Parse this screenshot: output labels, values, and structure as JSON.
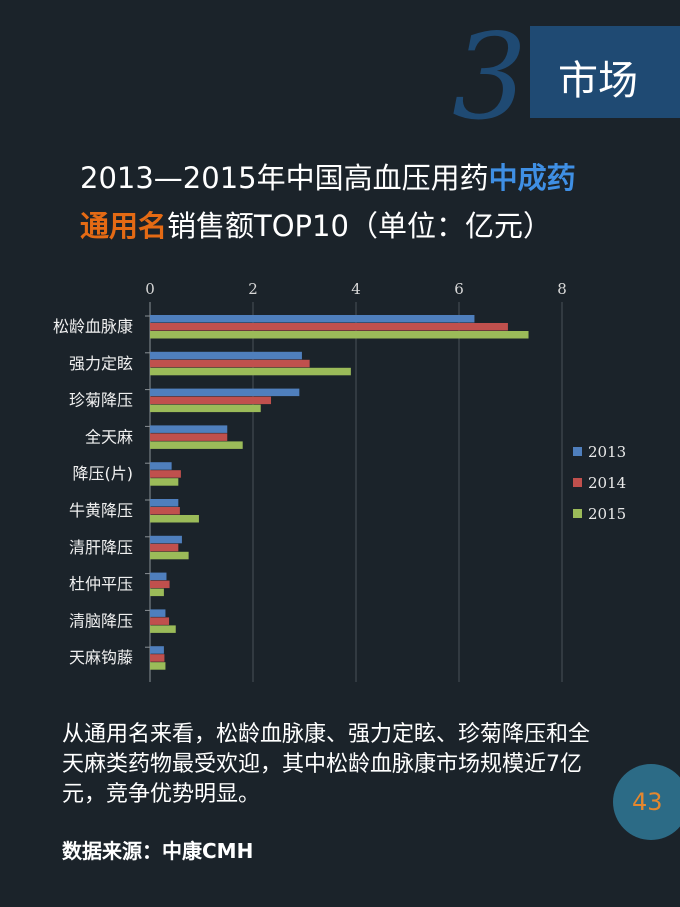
{
  "section": {
    "number": "3",
    "label": "市场"
  },
  "title": {
    "line1_prefix": "2013—2015年中国高血压用药",
    "line1_highlight": "中成药",
    "line2_highlight": "通用名",
    "line2_suffix": "销售额TOP10（单位：亿元）"
  },
  "colors": {
    "series_2013": "#4f7fbd",
    "series_2014": "#c0504d",
    "series_2015": "#9bbb59",
    "accent_blue": "#3f8fe4",
    "accent_orange": "#e46a14"
  },
  "chart_data": {
    "type": "bar",
    "orientation": "horizontal",
    "categories": [
      "松龄血脉康",
      "强力定眩",
      "珍菊降压",
      "全天麻",
      "降压(片)",
      "牛黄降压",
      "清肝降压",
      "杜仲平压",
      "清脑降压",
      "天麻钩藤"
    ],
    "series": [
      {
        "name": "2013",
        "values": [
          6.3,
          2.95,
          2.9,
          1.5,
          0.42,
          0.55,
          0.62,
          0.32,
          0.3,
          0.27
        ]
      },
      {
        "name": "2014",
        "values": [
          6.95,
          3.1,
          2.35,
          1.5,
          0.6,
          0.58,
          0.55,
          0.38,
          0.37,
          0.28
        ]
      },
      {
        "name": "2015",
        "values": [
          7.35,
          3.9,
          2.15,
          1.8,
          0.55,
          0.95,
          0.75,
          0.27,
          0.5,
          0.3
        ]
      }
    ],
    "xlim": [
      0,
      8
    ],
    "xticks": [
      "0",
      "2",
      "4",
      "6",
      "8"
    ],
    "grid": true,
    "legend_position": "right"
  },
  "body_text": "从通用名来看，松龄血脉康、强力定眩、珍菊降压和全天麻类药物最受欢迎，其中松龄血脉康市场规模近7亿元，竞争优势明显。",
  "source": "数据来源：中康CMH",
  "page_number": "43"
}
